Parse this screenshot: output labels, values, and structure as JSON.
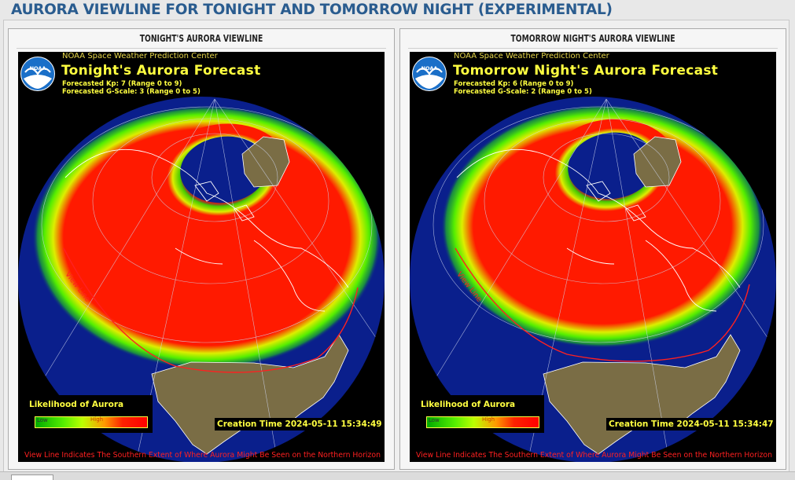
{
  "page": {
    "title": "AURORA VIEWLINE FOR TONIGHT AND TOMORROW NIGHT (EXPERIMENTAL)"
  },
  "colors": {
    "title": "#2a5c8f",
    "ocean": "#0a1f8c",
    "land": "#7a6d45",
    "aurora_high": "#ff1a00",
    "aurora_low": "#33dd00",
    "text_yellow": "#ffff40",
    "viewline": "#ff2020"
  },
  "panels": [
    {
      "header": "TONIGHT'S AURORA VIEWLINE",
      "org": "NOAA Space Weather Prediction Center",
      "logo_text": "NOAA",
      "forecast_title": "Tonight's Aurora Forecast",
      "kp_text": "Forecasted Kp: 7 (Range 0 to 9)",
      "gscale_text": "Forecasted G-Scale: 3 (Range 0 to 5)",
      "legend_title": "Likelihood of Aurora",
      "legend_low": "Low",
      "legend_high": "High",
      "creation_time": "Creation Time 2024-05-11 15:34:49",
      "view_line_label": "View Line",
      "footnote": "View Line Indicates The Southern Extent of Where Aurora Might Be Seen on the Northern Horizon"
    },
    {
      "header": "TOMORROW NIGHT'S AURORA VIEWLINE",
      "org": "NOAA Space Weather Prediction Center",
      "logo_text": "NOAA",
      "forecast_title": "Tomorrow Night's Aurora Forecast",
      "kp_text": "Forecasted Kp: 6 (Range 0 to 9)",
      "gscale_text": "Forecasted G-Scale: 2 (Range 0 to 5)",
      "legend_title": "Likelihood of Aurora",
      "legend_low": "Low",
      "legend_high": "High",
      "creation_time": "Creation Time 2024-05-11 15:34:47",
      "view_line_label": "View Line",
      "footnote": "View Line Indicates The Southern Extent of Where Aurora Might Be Seen on the Northern Horizon"
    }
  ]
}
